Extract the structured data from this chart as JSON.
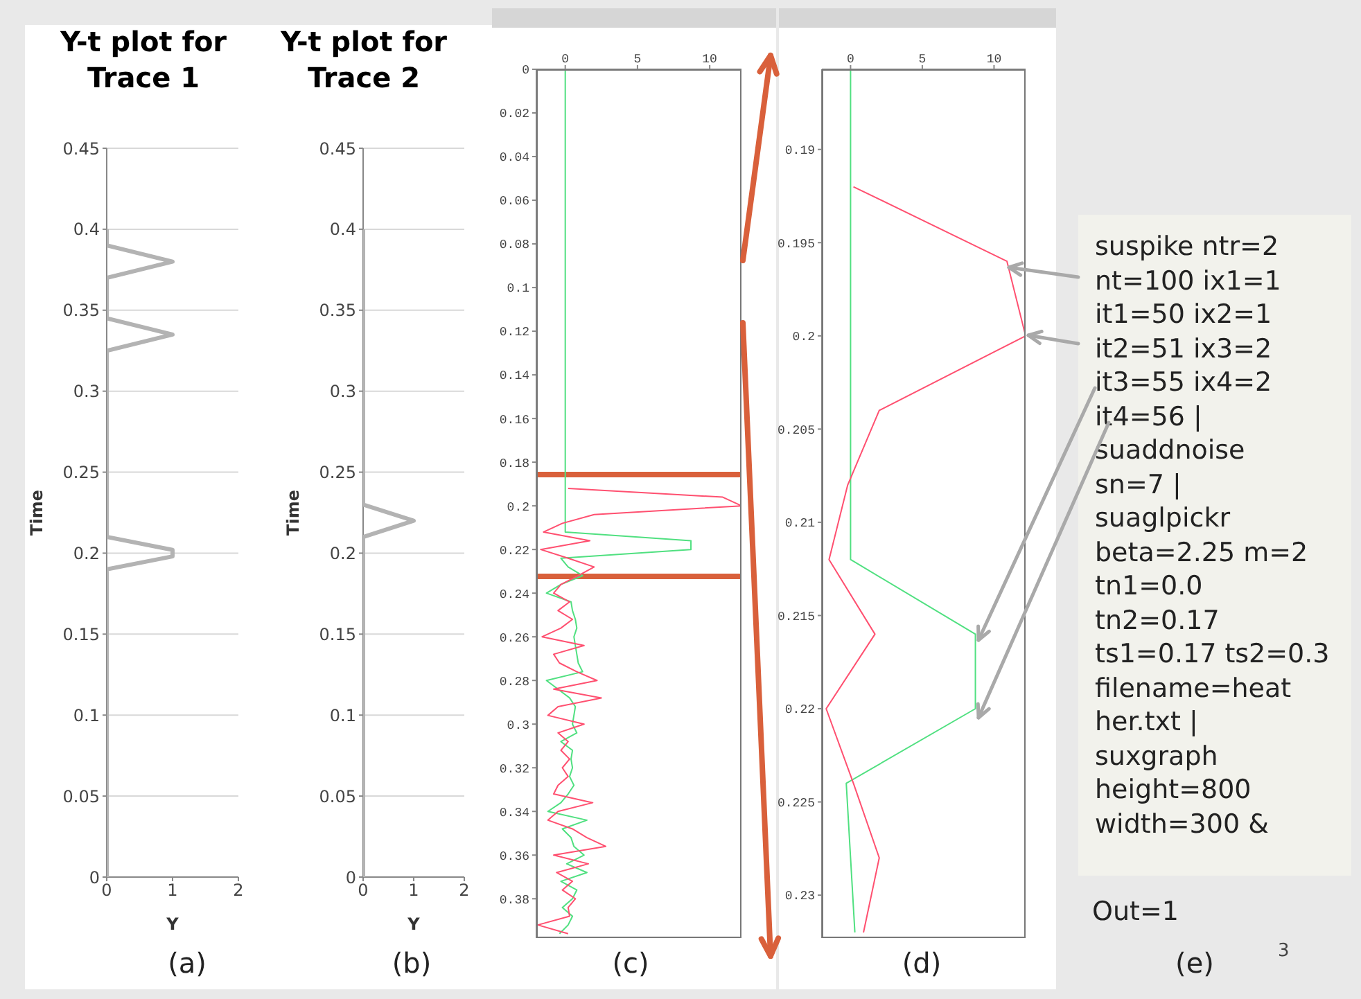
{
  "chart_data": [
    {
      "type": "line",
      "title": "Y-t plot for Trace 1",
      "xlabel": "Y",
      "ylabel": "Time",
      "xlim": [
        0,
        2
      ],
      "xticks": [
        0,
        1,
        2
      ],
      "ylim": [
        0,
        0.45
      ],
      "yticks": [
        0,
        0.05,
        0.1,
        0.15,
        0.2,
        0.25,
        0.3,
        0.35,
        0.4,
        0.45
      ],
      "grid": "y",
      "marker": "none",
      "annotations": [
        "(a)"
      ],
      "series": [
        {
          "color": "#b3b3b3",
          "x": [
            0,
            0,
            1,
            1,
            0,
            0,
            1,
            0,
            0,
            1,
            0,
            0
          ],
          "values": [
            0,
            0.19,
            0.198,
            0.202,
            0.21,
            0.325,
            0.335,
            0.345,
            0.37,
            0.38,
            0.39,
            0.4
          ]
        }
      ]
    },
    {
      "type": "line",
      "title": "Y-t plot for Trace 2",
      "xlabel": "Y",
      "ylabel": "Time",
      "xlim": [
        0,
        2
      ],
      "xticks": [
        0,
        1,
        2
      ],
      "ylim": [
        0,
        0.45
      ],
      "yticks": [
        0,
        0.05,
        0.1,
        0.15,
        0.2,
        0.25,
        0.3,
        0.35,
        0.4,
        0.45
      ],
      "grid": "y",
      "marker": "none",
      "annotations": [
        "(b)"
      ],
      "series": [
        {
          "color": "#b3b3b3",
          "x": [
            0,
            0,
            1,
            0,
            0
          ],
          "values": [
            0,
            0.21,
            0.22,
            0.23,
            0.4
          ]
        }
      ]
    },
    {
      "type": "line",
      "xlim": [
        -2,
        12.2
      ],
      "xticks": [
        0,
        5,
        10
      ],
      "ylim": [
        0.398,
        0
      ],
      "yticks": [
        0,
        0.02,
        0.04,
        0.06,
        0.08,
        0.1,
        0.12,
        0.14,
        0.16,
        0.18,
        0.2,
        0.22,
        0.24,
        0.26,
        0.28,
        0.3,
        0.32,
        0.34,
        0.36,
        0.38
      ],
      "marker": "none",
      "annotations": [
        "(c)"
      ],
      "ref_lines": [
        {
          "axis": "y",
          "value": 0.1857,
          "color": "#d9603b"
        },
        {
          "axis": "y",
          "value": 0.2323,
          "color": "#d9603b"
        }
      ],
      "series": [
        {
          "color": "#50e080",
          "x": [
            0,
            0,
            8.7,
            8.7,
            -0.3,
            0.2,
            1.2,
            -0.3,
            -1.3,
            0.4,
            0.5,
            0.7,
            0.8,
            0.6,
            0.7,
            0.8,
            0.9,
            1.2,
            -1.3,
            -0.5,
            0.3,
            0.7,
            0.6,
            0.5,
            0.8,
            -0.3,
            0.5,
            0.4,
            0.5,
            0.3,
            0.6,
            0.2,
            -0.3,
            -1.2,
            1.5,
            -0.2,
            0.4,
            0.6,
            1.3,
            0.1,
            1.5,
            -0.3,
            0.8,
            0.5,
            -0.2,
            0.5,
            0.2,
            -0.4
          ],
          "values": [
            0,
            0.212,
            0.216,
            0.22,
            0.224,
            0.228,
            0.232,
            0.236,
            0.24,
            0.244,
            0.248,
            0.252,
            0.256,
            0.26,
            0.264,
            0.268,
            0.272,
            0.276,
            0.28,
            0.284,
            0.288,
            0.292,
            0.296,
            0.3,
            0.304,
            0.308,
            0.312,
            0.316,
            0.32,
            0.324,
            0.328,
            0.332,
            0.336,
            0.34,
            0.344,
            0.348,
            0.352,
            0.356,
            0.36,
            0.364,
            0.368,
            0.372,
            0.376,
            0.38,
            0.384,
            0.388,
            0.392,
            0.396
          ]
        },
        {
          "color": "#ff5070",
          "x": [
            0.2,
            10.9,
            12.2,
            2,
            -0.2,
            -1.5,
            1.7,
            -1.7,
            0.2,
            2,
            0.9,
            -0.3,
            -0.8,
            0.3,
            -0.5,
            0.5,
            -0.3,
            -1.6,
            1.3,
            -0.8,
            -0.4,
            0.8,
            2.2,
            -0.8,
            2.5,
            -0.5,
            -1.2,
            1.3,
            -0.5,
            0.2,
            -0.3,
            0.3,
            -0.2,
            0.2,
            -0.5,
            -0.8,
            1.9,
            -0.5,
            -1.2,
            0.5,
            1.5,
            2.8,
            -0.8,
            1.6,
            -0.6,
            0.5,
            -0.2,
            0.7,
            0.2,
            0.3,
            -1.9,
            0.2
          ],
          "values": [
            0.192,
            0.196,
            0.2,
            0.204,
            0.208,
            0.212,
            0.216,
            0.22,
            0.224,
            0.228,
            0.232,
            0.236,
            0.24,
            0.244,
            0.248,
            0.252,
            0.256,
            0.26,
            0.264,
            0.268,
            0.272,
            0.276,
            0.28,
            0.284,
            0.288,
            0.292,
            0.296,
            0.3,
            0.304,
            0.308,
            0.312,
            0.316,
            0.32,
            0.324,
            0.328,
            0.332,
            0.336,
            0.34,
            0.344,
            0.348,
            0.352,
            0.356,
            0.36,
            0.364,
            0.368,
            0.372,
            0.376,
            0.38,
            0.384,
            0.388,
            0.392,
            0.396
          ]
        }
      ]
    },
    {
      "type": "line",
      "xlim": [
        -2,
        12.2
      ],
      "xticks": [
        0,
        5,
        10
      ],
      "ylim": [
        0.2323,
        0.1857
      ],
      "yticks": [
        0.19,
        0.195,
        0.2,
        0.205,
        0.21,
        0.215,
        0.22,
        0.225,
        0.23
      ],
      "marker": "none",
      "annotations": [
        "(d)"
      ],
      "series": [
        {
          "color": "#50e080",
          "x": [
            0,
            0,
            8.7,
            8.7,
            -0.3,
            0,
            0.3
          ],
          "values": [
            0.1857,
            0.212,
            0.216,
            0.22,
            0.224,
            0.228,
            0.232
          ]
        },
        {
          "color": "#ff5070",
          "x": [
            0.2,
            10.9,
            12.2,
            2,
            -0.2,
            -1.5,
            1.7,
            -1.7,
            0.2,
            2,
            0.9
          ],
          "values": [
            0.192,
            0.196,
            0.2,
            0.204,
            0.208,
            0.212,
            0.216,
            0.22,
            0.224,
            0.228,
            0.232
          ]
        }
      ]
    },
    {
      "type": "other",
      "annotations": [
        "suspike ntr=2",
        "nt=100 ix1=1",
        "it1=50 ix2=1",
        "it2=51 ix3=2",
        "it3=55 ix4=2",
        "it4=56 |",
        "suaddnoise",
        "sn=7 |",
        "suaglpickr",
        "beta=2.25 m=2",
        "tn1=0.0",
        "tn2=0.17",
        "ts1=0.17 ts2=0.3",
        "filename=heat",
        "her.txt |",
        "suxgraph",
        "height=800",
        "width=300 &",
        "Out=1",
        "(e)",
        "3"
      ]
    }
  ]
}
